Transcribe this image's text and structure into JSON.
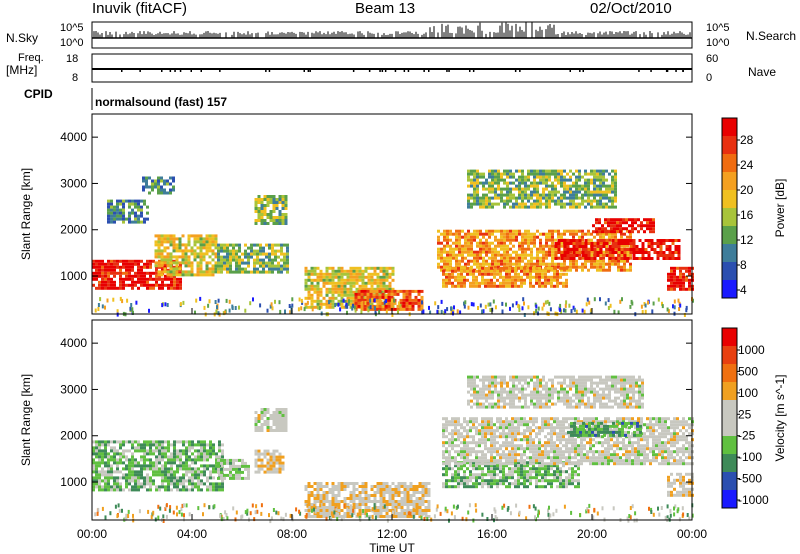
{
  "header": {
    "station": "Inuvik (fitACF)",
    "beam": "Beam 13",
    "date": "02/Oct/2010"
  },
  "side_labels": {
    "nsky": "N.Sky",
    "freq": "Freq.",
    "freq_unit": "[MHz]",
    "cpid": "CPID",
    "nsearch": "N.Search",
    "nave": "Nave"
  },
  "cpid_text": "normalsound (fast) 157",
  "noise_ticks": {
    "top": "10^5",
    "bottom": "10^0"
  },
  "freq_ticks": [
    "18",
    "8"
  ],
  "nave_ticks": [
    "60",
    "0"
  ],
  "colors": {
    "power_scale": [
      "#1a1aff",
      "#2b4fb0",
      "#3e7d9a",
      "#5aa04a",
      "#a8c43a",
      "#f0c020",
      "#f4a020",
      "#f06c10",
      "#e83010",
      "#e80000"
    ],
    "velocity_scale": [
      "#1a1aff",
      "#2b4fb0",
      "#3e8a58",
      "#60c040",
      "#c8c8c0",
      "#c8c8c0",
      "#f0a020",
      "#f07010",
      "#e84010",
      "#e80000"
    ]
  },
  "chart_data": [
    {
      "type": "line",
      "panel": "noise",
      "series": [
        {
          "name": "N.Sky"
        },
        {
          "name": "N.Search"
        }
      ],
      "ytick_labels": [
        "10^5",
        "10^0"
      ]
    },
    {
      "type": "line",
      "panel": "frequency / nave",
      "ylabel_left": "Freq. [MHz]",
      "ylabel_right": "Nave",
      "left_ylim": [
        8,
        18
      ],
      "right_ylim": [
        0,
        60
      ]
    },
    {
      "type": "heatmap",
      "panel": "power",
      "xlabel": "",
      "ylabel": "Slant Range [km]",
      "xlim": [
        0,
        24
      ],
      "ylim": [
        180,
        4500
      ],
      "yticks": [
        1000,
        2000,
        3000,
        4000
      ],
      "colorbar": {
        "label": "Power [dB]",
        "ticks": [
          "28",
          "24",
          "20",
          "16",
          "12",
          "8",
          "4"
        ],
        "range": [
          0,
          30
        ]
      },
      "echo_regions": [
        {
          "t": [
            0.0,
            3.5
          ],
          "range": [
            750,
            1350
          ],
          "value": 28
        },
        {
          "t": [
            2.5,
            5.0
          ],
          "range": [
            1000,
            1900
          ],
          "value": 16
        },
        {
          "t": [
            0.6,
            2.2
          ],
          "range": [
            2150,
            2650
          ],
          "value": 8
        },
        {
          "t": [
            2.0,
            3.3
          ],
          "range": [
            2800,
            3150
          ],
          "value": 8
        },
        {
          "t": [
            5.0,
            7.8
          ],
          "range": [
            1100,
            1700
          ],
          "value": 12
        },
        {
          "t": [
            6.5,
            7.8
          ],
          "range": [
            2150,
            2750
          ],
          "value": 12
        },
        {
          "t": [
            8.5,
            12.0
          ],
          "range": [
            300,
            1200
          ],
          "value": 16
        },
        {
          "t": [
            10.5,
            13.2
          ],
          "range": [
            250,
            700
          ],
          "value": 24
        },
        {
          "t": [
            13.8,
            21.5
          ],
          "range": [
            1100,
            2000
          ],
          "value": 20
        },
        {
          "t": [
            14.0,
            19.0
          ],
          "range": [
            800,
            1200
          ],
          "value": 20
        },
        {
          "t": [
            15.0,
            21.0
          ],
          "range": [
            2500,
            3300
          ],
          "value": 12
        },
        {
          "t": [
            18.5,
            23.5
          ],
          "range": [
            1350,
            1800
          ],
          "value": 28
        },
        {
          "t": [
            20.0,
            22.5
          ],
          "range": [
            1950,
            2250
          ],
          "value": 28
        },
        {
          "t": [
            23.0,
            24.0
          ],
          "range": [
            700,
            1200
          ],
          "value": 28
        }
      ]
    },
    {
      "type": "heatmap",
      "panel": "velocity",
      "xlabel": "Time UT",
      "ylabel": "Slant Range [km]",
      "xlim": [
        0,
        24
      ],
      "ylim": [
        180,
        4500
      ],
      "xtick_labels": [
        "00:00",
        "04:00",
        "08:00",
        "12:00",
        "16:00",
        "20:00",
        "00:00"
      ],
      "yticks": [
        1000,
        2000,
        3000,
        4000
      ],
      "colorbar": {
        "label": "Velocity [m s^-1]",
        "ticks": [
          "1000",
          "500",
          "100",
          "25",
          "-25",
          "-100",
          "-500",
          "-1000"
        ],
        "range": [
          -1000,
          1000
        ]
      },
      "echo_regions": [
        {
          "t": [
            0.0,
            5.2
          ],
          "range": [
            800,
            1900
          ],
          "value": -300
        },
        {
          "t": [
            5.0,
            6.2
          ],
          "range": [
            1100,
            1500
          ],
          "value": -200
        },
        {
          "t": [
            6.5,
            7.6
          ],
          "range": [
            1200,
            1700
          ],
          "value": 150
        },
        {
          "t": [
            6.5,
            7.8
          ],
          "range": [
            2100,
            2600
          ],
          "value": 0
        },
        {
          "t": [
            8.5,
            13.5
          ],
          "range": [
            250,
            1000
          ],
          "value": 150
        },
        {
          "t": [
            14.0,
            19.5
          ],
          "range": [
            900,
            1450
          ],
          "value": -300
        },
        {
          "t": [
            14.0,
            24.0
          ],
          "range": [
            1400,
            2400
          ],
          "value": 0
        },
        {
          "t": [
            15.0,
            22.0
          ],
          "range": [
            2600,
            3300
          ],
          "value": 0
        },
        {
          "t": [
            19.0,
            22.0
          ],
          "range": [
            2000,
            2300
          ],
          "value": -400
        },
        {
          "t": [
            23.0,
            24.0
          ],
          "range": [
            700,
            1200
          ],
          "value": 150
        }
      ]
    }
  ]
}
